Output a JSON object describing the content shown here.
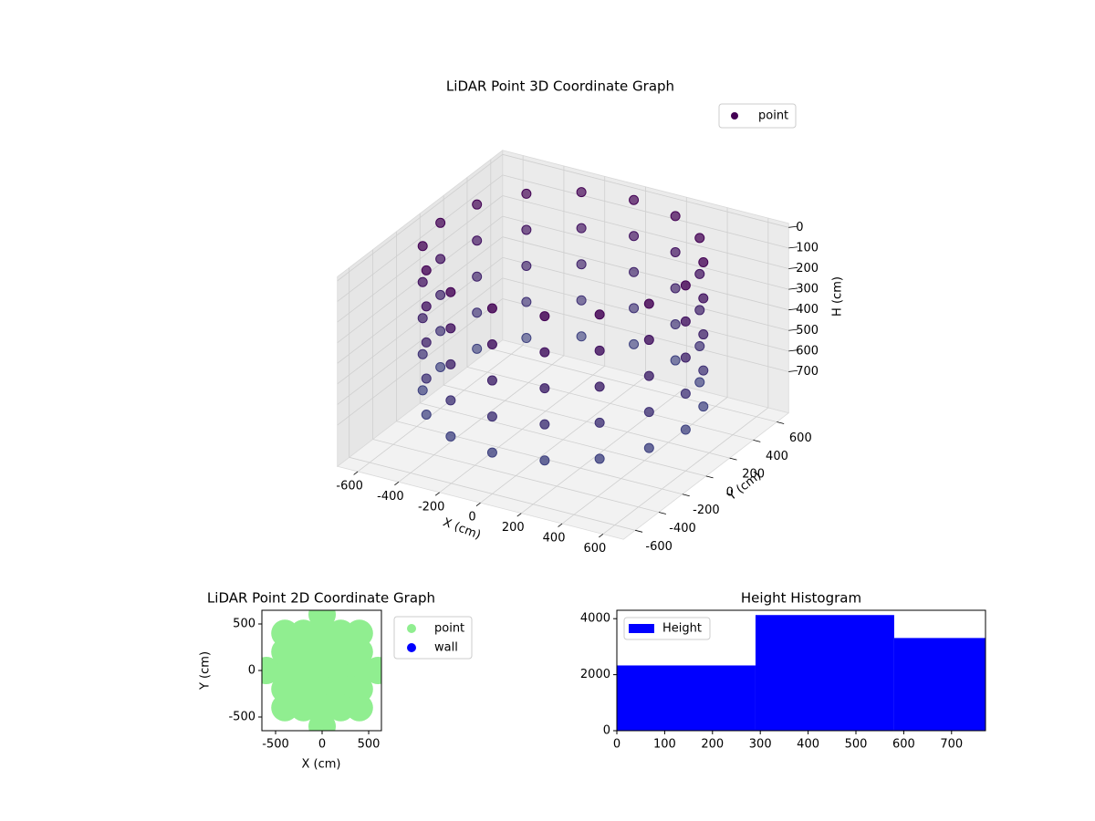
{
  "chart_data": [
    {
      "type": "scatter3d",
      "title": "LiDAR Point 3D Coordinate Graph",
      "x_label": "X (cm)",
      "y_label": "Y (cm)",
      "z_label": "H (cm)",
      "xlim": [
        -700,
        700
      ],
      "ylim": [
        -700,
        700
      ],
      "zlim": [
        -20,
        900
      ],
      "z_inverted": true,
      "xticks": [
        -600,
        -400,
        -200,
        0,
        200,
        400,
        600
      ],
      "yticks": [
        -600,
        -400,
        -200,
        0,
        200,
        400,
        600
      ],
      "zticks": [
        0,
        100,
        200,
        300,
        400,
        500,
        600,
        700
      ],
      "grid": true,
      "legend": "upper right",
      "series": [
        {
          "name": "point",
          "color": "#440154",
          "colormap": [
            "#440154",
            "#3b528b"
          ],
          "x": [
            600,
            600,
            600,
            600,
            600,
            554,
            554,
            554,
            554,
            554,
            424,
            424,
            424,
            424,
            424,
            230,
            230,
            230,
            230,
            230,
            0,
            0,
            0,
            0,
            0,
            -230,
            -230,
            -230,
            -230,
            -230,
            -424,
            -424,
            -424,
            -424,
            -424,
            -554,
            -554,
            -554,
            -554,
            -554,
            -600,
            -600,
            -600,
            -600,
            -600,
            -554,
            -554,
            -554,
            -554,
            -554,
            -424,
            -424,
            -424,
            -424,
            -424,
            -230,
            -230,
            -230,
            -230,
            -230,
            0,
            0,
            0,
            0,
            0,
            230,
            230,
            230,
            230,
            230,
            424,
            424,
            424,
            424,
            424,
            554,
            554,
            554,
            554,
            554
          ],
          "y": [
            0,
            0,
            0,
            0,
            0,
            230,
            230,
            230,
            230,
            230,
            424,
            424,
            424,
            424,
            424,
            554,
            554,
            554,
            554,
            554,
            600,
            600,
            600,
            600,
            600,
            554,
            554,
            554,
            554,
            554,
            424,
            424,
            424,
            424,
            424,
            230,
            230,
            230,
            230,
            230,
            0,
            0,
            0,
            0,
            0,
            -230,
            -230,
            -230,
            -230,
            -230,
            -424,
            -424,
            -424,
            -424,
            -424,
            -554,
            -554,
            -554,
            -554,
            -554,
            -600,
            -600,
            -600,
            -600,
            -600,
            -554,
            -554,
            -554,
            -554,
            -554,
            -424,
            -424,
            -424,
            -424,
            -424,
            -230,
            -230,
            -230,
            -230,
            -230
          ],
          "z": [
            0,
            175,
            350,
            525,
            700,
            0,
            175,
            350,
            525,
            700,
            0,
            175,
            350,
            525,
            700,
            0,
            175,
            350,
            525,
            700,
            0,
            175,
            350,
            525,
            700,
            0,
            175,
            350,
            525,
            700,
            0,
            175,
            350,
            525,
            700,
            0,
            175,
            350,
            525,
            700,
            0,
            175,
            350,
            525,
            700,
            0,
            175,
            350,
            525,
            700,
            0,
            175,
            350,
            525,
            700,
            0,
            175,
            350,
            525,
            700,
            0,
            175,
            350,
            525,
            700,
            0,
            175,
            350,
            525,
            700,
            0,
            175,
            350,
            525,
            700,
            0,
            175,
            350,
            525,
            700
          ]
        }
      ]
    },
    {
      "type": "scatter",
      "title": "LiDAR Point 2D Coordinate Graph",
      "x_label": "X (cm)",
      "y_label": "Y (cm)",
      "xlim": [
        -647,
        637
      ],
      "ylim": [
        -647,
        647
      ],
      "xticks": [
        -500,
        0,
        500
      ],
      "yticks": [
        -500,
        0,
        500
      ],
      "legend": "outside upper right",
      "series": [
        {
          "name": "point",
          "color": "#90ee90",
          "x": [
            -600,
            -400,
            -200,
            0,
            200,
            400,
            600,
            -400,
            -200,
            0,
            200,
            400,
            -400,
            -200,
            0,
            200,
            400,
            -400,
            -200,
            0,
            200,
            400,
            -400,
            -200,
            0,
            200,
            400,
            0,
            0
          ],
          "y": [
            0,
            0,
            0,
            0,
            0,
            0,
            0,
            200,
            200,
            200,
            200,
            200,
            -200,
            -200,
            -200,
            -200,
            -200,
            400,
            400,
            400,
            400,
            400,
            -400,
            -400,
            -400,
            -400,
            -400,
            600,
            -600
          ]
        },
        {
          "name": "wall",
          "color": "#0000ff",
          "x": [],
          "y": []
        }
      ]
    },
    {
      "type": "histogram",
      "title": "Height Histogram",
      "bins": [
        0,
        290,
        580,
        771
      ],
      "xlim": [
        0,
        771
      ],
      "ylim": [
        0,
        4300
      ],
      "xticks": [
        0,
        100,
        200,
        300,
        400,
        500,
        600,
        700
      ],
      "yticks": [
        0,
        2000,
        4000
      ],
      "legend": "upper left",
      "series": [
        {
          "name": "Height",
          "color": "#0000ff",
          "values": [
            2330,
            4130,
            3310
          ]
        }
      ]
    }
  ]
}
